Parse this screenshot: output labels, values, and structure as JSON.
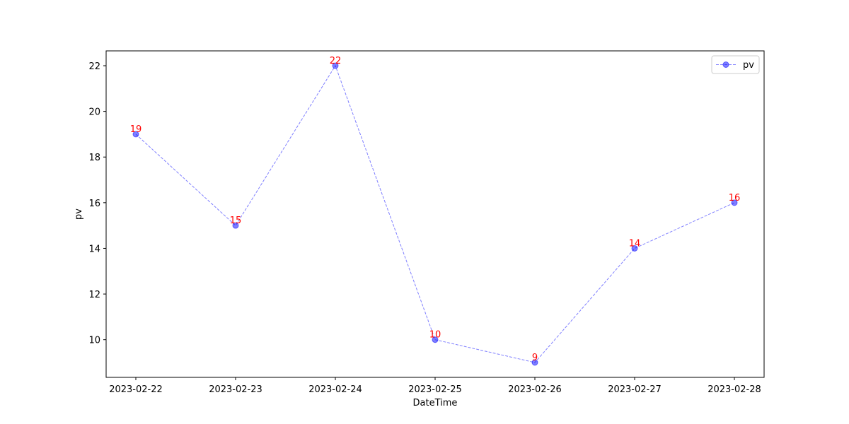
{
  "chart_data": {
    "type": "line",
    "title": "",
    "xlabel": "DateTime",
    "ylabel": "pv",
    "x": [
      "2023-02-22",
      "2023-02-23",
      "2023-02-24",
      "2023-02-25",
      "2023-02-26",
      "2023-02-27",
      "2023-02-28"
    ],
    "series": [
      {
        "name": "pv",
        "values": [
          19,
          15,
          22,
          10,
          9,
          14,
          16
        ],
        "color": "#0000ff",
        "line_style": "dashed",
        "marker": "circle",
        "data_labels": [
          "19",
          "15",
          "22",
          "10",
          "9",
          "14",
          "16"
        ],
        "data_label_color": "#ff0000"
      }
    ],
    "ylim": [
      8.35,
      22.65
    ],
    "yticks": [
      10,
      12,
      14,
      16,
      18,
      20,
      22
    ],
    "grid": false,
    "legend": "top-right"
  }
}
